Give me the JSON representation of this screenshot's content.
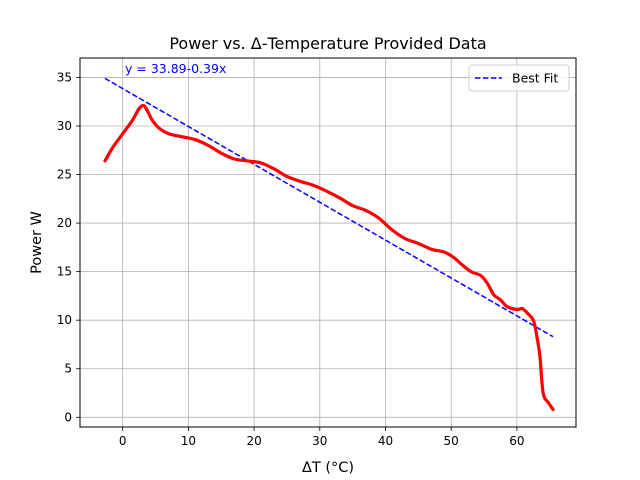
{
  "chart_data": {
    "type": "line",
    "title": "Power vs. Δ-Temperature Provided Data",
    "xlabel": "ΔT (°C)",
    "ylabel": "Power W",
    "xlim": [
      -6.5,
      69
    ],
    "ylim": [
      -1,
      37
    ],
    "xticks": [
      0,
      10,
      20,
      30,
      40,
      50,
      60
    ],
    "yticks": [
      0,
      5,
      10,
      15,
      20,
      25,
      30,
      35
    ],
    "grid": true,
    "legend_position": "top-right",
    "series": [
      {
        "kind": "data",
        "color": "#ff0000",
        "x": [
          -2.7,
          -1.5,
          0,
          1.5,
          2.5,
          3.2,
          3.8,
          4.5,
          5.5,
          7,
          9,
          11,
          13,
          15,
          17,
          19,
          21,
          23,
          25,
          27,
          29,
          31,
          33,
          35,
          37,
          39,
          41,
          43,
          45,
          47,
          49,
          50.5,
          51.5,
          53,
          54.5,
          55.5,
          56.5,
          57.5,
          58.5,
          60,
          60.8,
          61.5,
          62.5,
          63,
          63.5,
          64,
          64.8,
          65.5
        ],
        "y": [
          26.4,
          27.8,
          29.2,
          30.6,
          31.8,
          32.1,
          31.5,
          30.6,
          29.8,
          29.2,
          28.9,
          28.6,
          28.0,
          27.2,
          26.6,
          26.4,
          26.2,
          25.6,
          24.8,
          24.3,
          23.9,
          23.3,
          22.6,
          21.8,
          21.3,
          20.5,
          19.3,
          18.4,
          17.9,
          17.3,
          17.0,
          16.4,
          15.8,
          15.0,
          14.6,
          13.8,
          12.6,
          12.1,
          11.4,
          11.1,
          11.2,
          10.8,
          10.0,
          8.5,
          6.3,
          2.5,
          1.5,
          0.8
        ]
      },
      {
        "kind": "fit",
        "name": "Best Fit",
        "color": "#0000ff",
        "dashed": true,
        "x": [
          -2.7,
          65.5
        ],
        "y": [
          34.9,
          8.3
        ],
        "equation": "y = 33.89-0.39x"
      }
    ]
  }
}
